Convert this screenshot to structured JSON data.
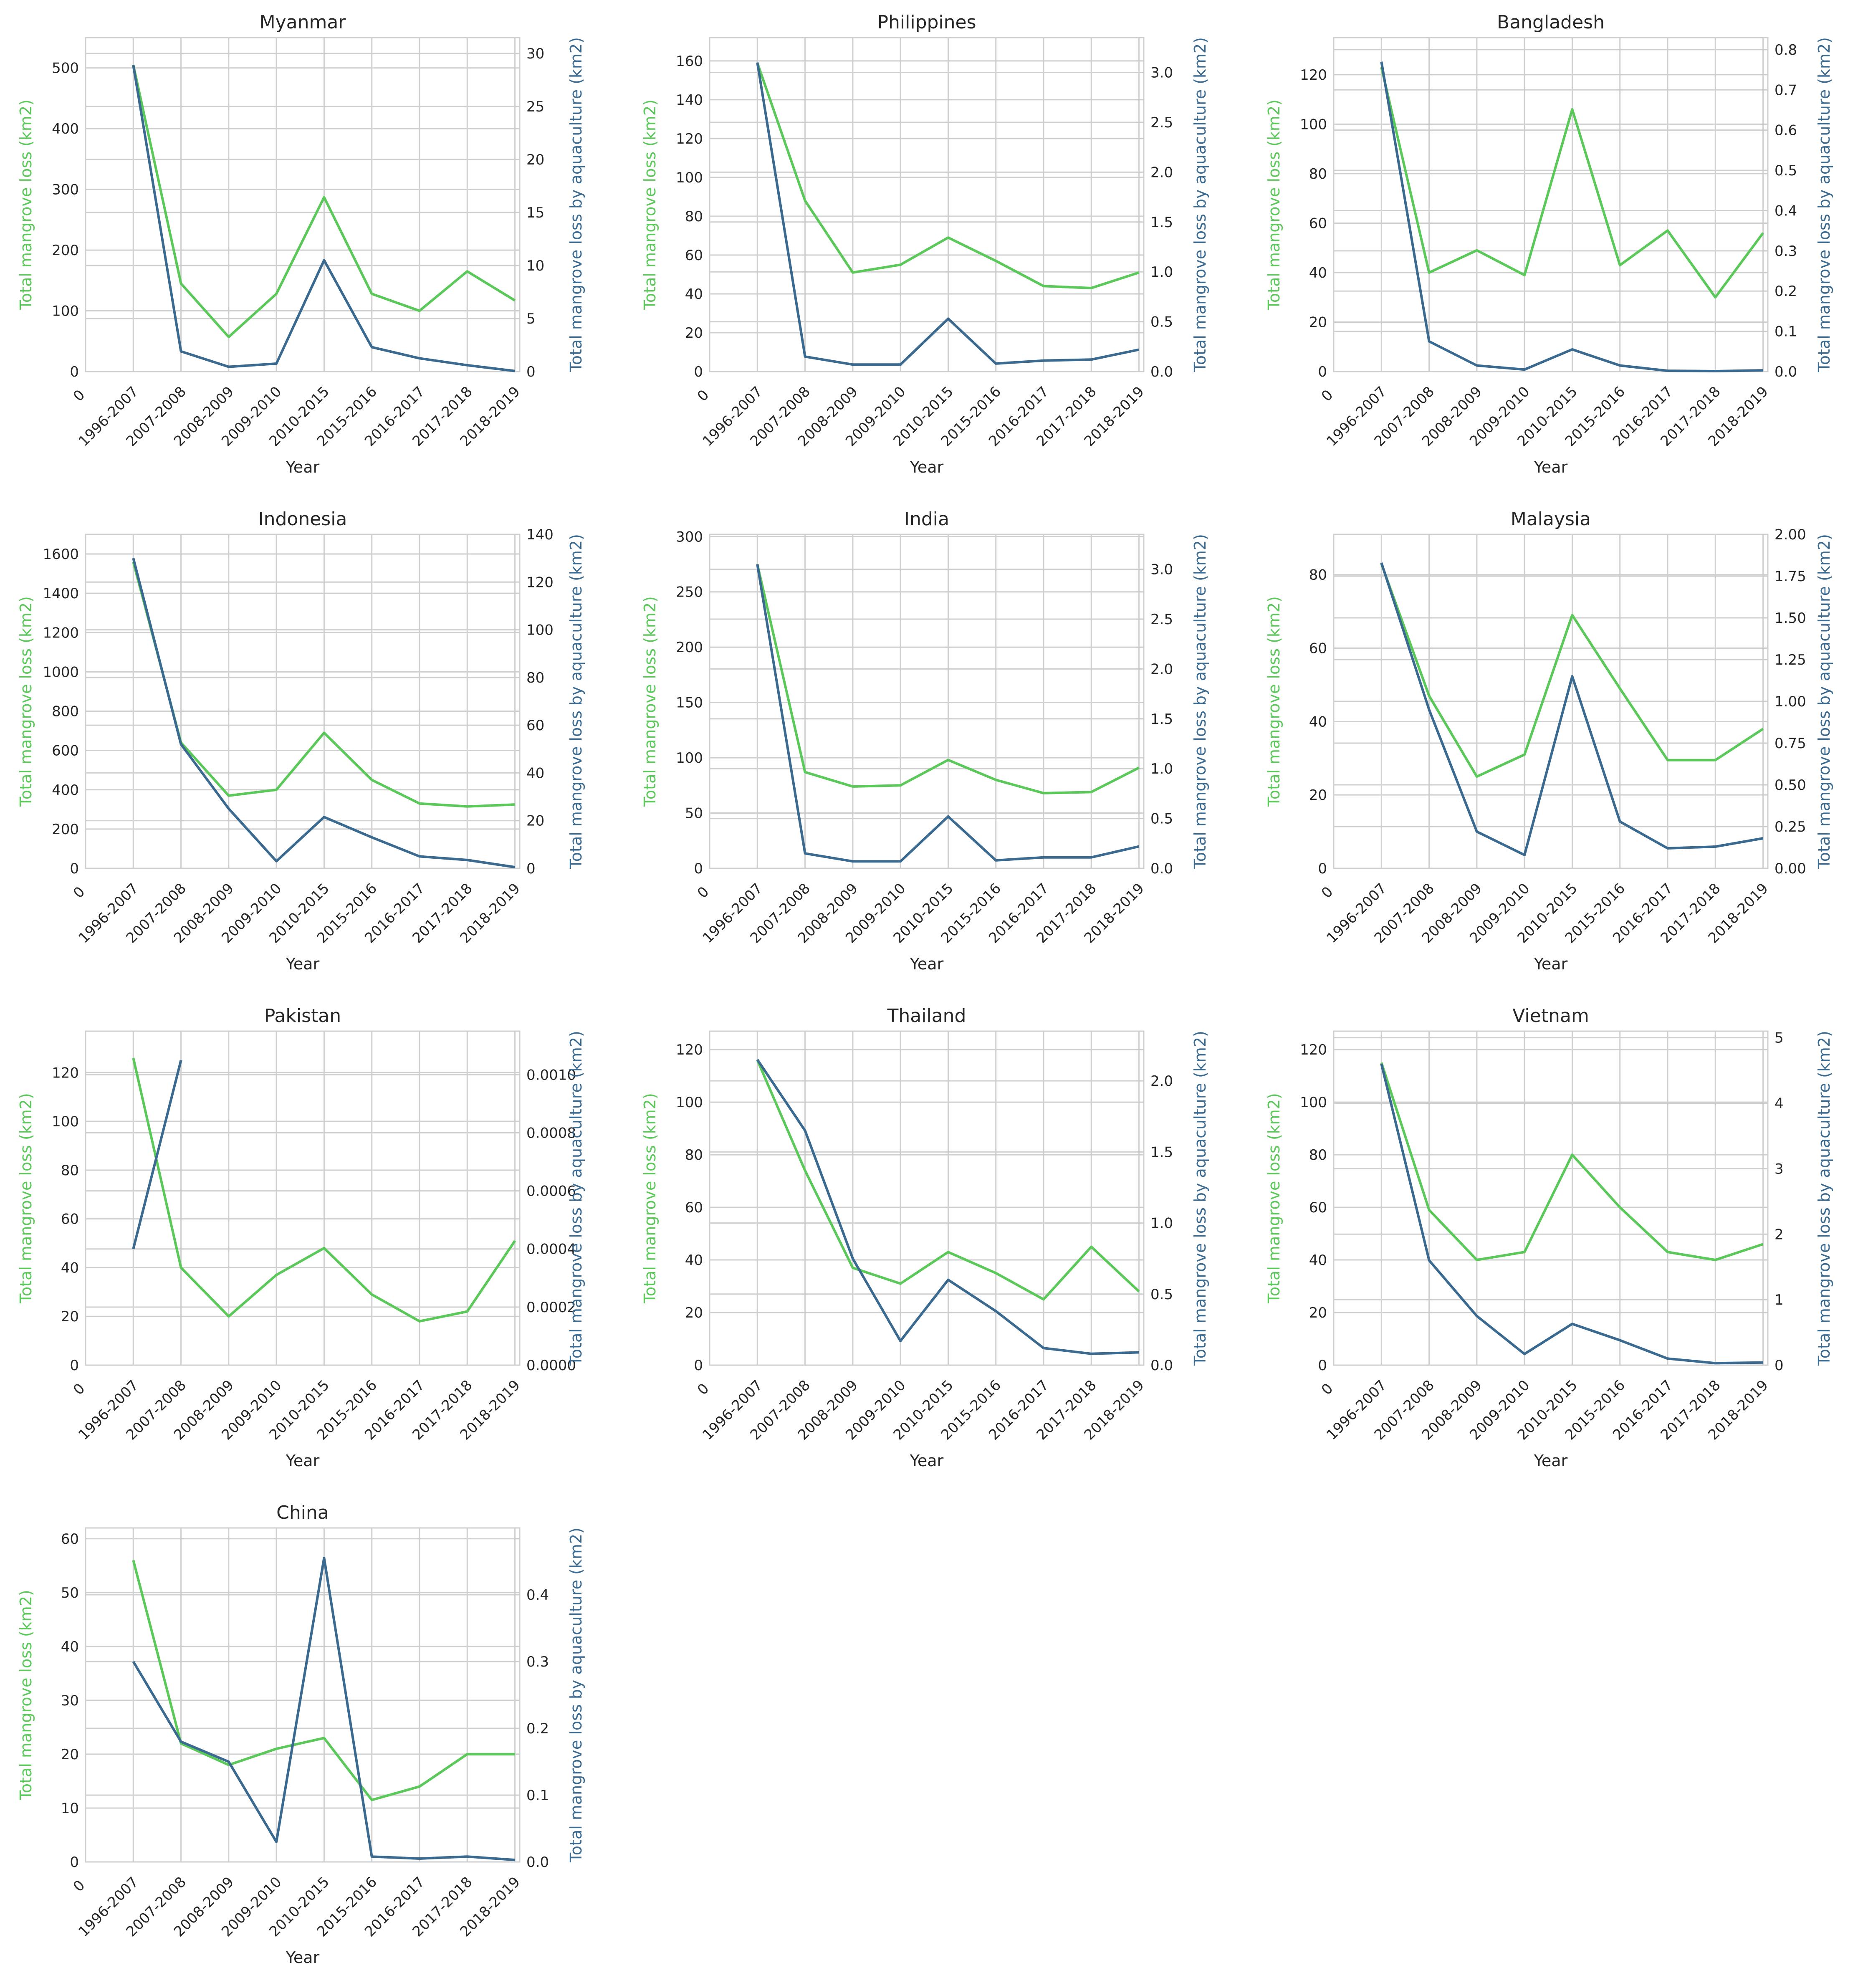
{
  "colors": {
    "total": "#5bc85a",
    "aquaculture": "#3b6a91",
    "grid": "#cfcfcf",
    "text": "#262626"
  },
  "labels": {
    "xlabel": "Year",
    "ylabel_left": "Total mangrove loss (km2)",
    "ylabel_right": "Total mangrove loss by aquaculture (km2)",
    "xtick_zero": "0"
  },
  "chart_data": [
    {
      "type": "line",
      "title": "Myanmar",
      "categories": [
        "1996-2007",
        "2007-2008",
        "2008-2009",
        "2009-2010",
        "2010-2015",
        "2015-2016",
        "2016-2017",
        "2017-2018",
        "2018-2019"
      ],
      "xlabel": "Year",
      "ylabel": "Total mangrove loss (km2)",
      "ylabel_right": "Total mangrove loss by aquaculture (km2)",
      "ylim": [
        0,
        550
      ],
      "yticks": [
        0,
        100,
        200,
        300,
        400,
        500
      ],
      "ylim_right": [
        0,
        31.5
      ],
      "yticks_right": [
        0,
        5,
        10,
        15,
        20,
        25,
        30
      ],
      "tick_decimals": 0,
      "tick_decimals_right": 0,
      "series": [
        {
          "axis": "left",
          "values": [
            505,
            145,
            57,
            128,
            287,
            128,
            100,
            165,
            117
          ]
        },
        {
          "axis": "right",
          "values": [
            28.9,
            1.9,
            0.45,
            0.75,
            10.5,
            2.3,
            1.25,
            0.6,
            0.05
          ]
        }
      ]
    },
    {
      "type": "line",
      "title": "Philippines",
      "categories": [
        "1996-2007",
        "2007-2008",
        "2008-2009",
        "2009-2010",
        "2010-2015",
        "2015-2016",
        "2016-2017",
        "2017-2018",
        "2018-2019"
      ],
      "xlabel": "Year",
      "ylabel": "Total mangrove loss (km2)",
      "ylabel_right": "Total mangrove loss by aquaculture (km2)",
      "ylim": [
        0,
        172
      ],
      "yticks": [
        0,
        20,
        40,
        60,
        80,
        100,
        120,
        140,
        160
      ],
      "ylim_right": [
        0,
        3.35
      ],
      "yticks_right": [
        0,
        0.5,
        1.0,
        1.5,
        2.0,
        2.5,
        3.0
      ],
      "tick_decimals": 0,
      "tick_decimals_right": 1,
      "series": [
        {
          "axis": "left",
          "values": [
            159,
            88,
            51,
            55,
            69,
            57,
            44,
            43,
            51
          ]
        },
        {
          "axis": "right",
          "values": [
            3.1,
            0.15,
            0.07,
            0.07,
            0.53,
            0.08,
            0.11,
            0.12,
            0.22
          ]
        }
      ]
    },
    {
      "type": "line",
      "title": "Bangladesh",
      "categories": [
        "1996-2007",
        "2007-2008",
        "2008-2009",
        "2009-2010",
        "2010-2015",
        "2015-2016",
        "2016-2017",
        "2017-2018",
        "2018-2019"
      ],
      "xlabel": "Year",
      "ylabel": "Total mangrove loss (km2)",
      "ylabel_right": "Total mangrove loss by aquaculture (km2)",
      "ylim": [
        0,
        135
      ],
      "yticks": [
        0,
        20,
        40,
        60,
        80,
        100,
        120
      ],
      "ylim_right": [
        0,
        0.83
      ],
      "yticks_right": [
        0,
        0.1,
        0.2,
        0.3,
        0.4,
        0.5,
        0.6,
        0.7,
        0.8
      ],
      "tick_decimals": 0,
      "tick_decimals_right": 1,
      "series": [
        {
          "axis": "left",
          "values": [
            123,
            40,
            49,
            39,
            106,
            43,
            57,
            30,
            56
          ]
        },
        {
          "axis": "right",
          "values": [
            0.77,
            0.075,
            0.015,
            0.005,
            0.055,
            0.015,
            0.002,
            0.001,
            0.003
          ]
        }
      ]
    },
    {
      "type": "line",
      "title": "Indonesia",
      "categories": [
        "1996-2007",
        "2007-2008",
        "2008-2009",
        "2009-2010",
        "2010-2015",
        "2015-2016",
        "2016-2017",
        "2017-2018",
        "2018-2019"
      ],
      "xlabel": "Year",
      "ylabel": "Total mangrove loss (km2)",
      "ylabel_right": "Total mangrove loss by aquaculture (km2)",
      "ylim": [
        0,
        1700
      ],
      "yticks": [
        0,
        200,
        400,
        600,
        800,
        1000,
        1200,
        1400,
        1600
      ],
      "ylim_right": [
        0,
        140
      ],
      "yticks_right": [
        0,
        20,
        40,
        60,
        80,
        100,
        120,
        140
      ],
      "tick_decimals": 0,
      "tick_decimals_right": 0,
      "series": [
        {
          "axis": "left",
          "values": [
            1560,
            640,
            370,
            400,
            690,
            450,
            330,
            315,
            325
          ]
        },
        {
          "axis": "right",
          "values": [
            130,
            52,
            25,
            3,
            21.5,
            13,
            5,
            3.5,
            0.5
          ]
        }
      ]
    },
    {
      "type": "line",
      "title": "India",
      "categories": [
        "1996-2007",
        "2007-2008",
        "2008-2009",
        "2009-2010",
        "2010-2015",
        "2015-2016",
        "2016-2017",
        "2017-2018",
        "2018-2019"
      ],
      "xlabel": "Year",
      "ylabel": "Total mangrove loss (km2)",
      "ylabel_right": "Total mangrove loss by aquaculture (km2)",
      "ylim": [
        0,
        302
      ],
      "yticks": [
        0,
        50,
        100,
        150,
        200,
        250,
        300
      ],
      "ylim_right": [
        0,
        3.35
      ],
      "yticks_right": [
        0,
        0.5,
        1.0,
        1.5,
        2.0,
        2.5,
        3.0
      ],
      "tick_decimals": 0,
      "tick_decimals_right": 1,
      "series": [
        {
          "axis": "left",
          "values": [
            275,
            87,
            74,
            75,
            98,
            80,
            68,
            69,
            91
          ]
        },
        {
          "axis": "right",
          "values": [
            3.05,
            0.15,
            0.07,
            0.07,
            0.52,
            0.08,
            0.11,
            0.11,
            0.22
          ]
        }
      ]
    },
    {
      "type": "line",
      "title": "Malaysia",
      "categories": [
        "1996-2007",
        "2007-2008",
        "2008-2009",
        "2009-2010",
        "2010-2015",
        "2015-2016",
        "2016-2017",
        "2017-2018",
        "2018-2019"
      ],
      "xlabel": "Year",
      "ylabel": "Total mangrove loss (km2)",
      "ylabel_right": "Total mangrove loss by aquaculture (km2)",
      "ylim": [
        0,
        91
      ],
      "yticks": [
        0,
        20,
        40,
        60,
        80
      ],
      "ylim_right": [
        0,
        2.0
      ],
      "yticks_right": [
        0,
        0.25,
        0.5,
        0.75,
        1.0,
        1.25,
        1.5,
        1.75,
        2.0
      ],
      "tick_decimals": 0,
      "tick_decimals_right": 2,
      "series": [
        {
          "axis": "left",
          "values": [
            83,
            47,
            25,
            31,
            69,
            49,
            29.5,
            29.5,
            38
          ]
        },
        {
          "axis": "right",
          "values": [
            1.83,
            0.95,
            0.22,
            0.08,
            1.15,
            0.28,
            0.12,
            0.13,
            0.18
          ]
        }
      ]
    },
    {
      "type": "line",
      "title": "Pakistan",
      "categories": [
        "1996-2007",
        "2007-2008",
        "2008-2009",
        "2009-2010",
        "2010-2015",
        "2015-2016",
        "2016-2017",
        "2017-2018",
        "2018-2019"
      ],
      "xlabel": "Year",
      "ylabel": "Total mangrove loss (km2)",
      "ylabel_right": "Total mangrove loss by aquaculture (km2)",
      "ylim": [
        0,
        137
      ],
      "yticks": [
        0,
        20,
        40,
        60,
        80,
        100,
        120
      ],
      "ylim_right": [
        0,
        0.00115
      ],
      "yticks_right": [
        0,
        0.0002,
        0.0004,
        0.0006,
        0.0008,
        0.001
      ],
      "tick_decimals": 0,
      "tick_decimals_right": 4,
      "series": [
        {
          "axis": "left",
          "values": [
            126,
            40,
            20,
            37,
            48,
            29,
            18,
            22,
            51
          ]
        },
        {
          "axis": "right",
          "values": [
            0.0004,
            0.00105,
            null,
            null,
            null,
            null,
            null,
            null,
            null
          ]
        }
      ]
    },
    {
      "type": "line",
      "title": "Thailand",
      "categories": [
        "1996-2007",
        "2007-2008",
        "2008-2009",
        "2009-2010",
        "2010-2015",
        "2015-2016",
        "2016-2017",
        "2017-2018",
        "2018-2019"
      ],
      "xlabel": "Year",
      "ylabel": "Total mangrove loss (km2)",
      "ylabel_right": "Total mangrove loss by aquaculture (km2)",
      "ylim": [
        0,
        127
      ],
      "yticks": [
        0,
        20,
        40,
        60,
        80,
        100,
        120
      ],
      "ylim_right": [
        0,
        2.35
      ],
      "yticks_right": [
        0,
        0.5,
        1.0,
        1.5,
        2.0
      ],
      "tick_decimals": 0,
      "tick_decimals_right": 1,
      "series": [
        {
          "axis": "left",
          "values": [
            116,
            74,
            37,
            31,
            43,
            35,
            25,
            45,
            28
          ]
        },
        {
          "axis": "right",
          "values": [
            2.15,
            1.65,
            0.75,
            0.17,
            0.6,
            0.38,
            0.12,
            0.08,
            0.09
          ]
        }
      ]
    },
    {
      "type": "line",
      "title": "Vietnam",
      "categories": [
        "1996-2007",
        "2007-2008",
        "2008-2009",
        "2009-2010",
        "2010-2015",
        "2015-2016",
        "2016-2017",
        "2017-2018",
        "2018-2019"
      ],
      "xlabel": "Year",
      "ylabel": "Total mangrove loss (km2)",
      "ylabel_right": "Total mangrove loss by aquaculture (km2)",
      "ylim": [
        0,
        127
      ],
      "yticks": [
        0,
        20,
        40,
        60,
        80,
        100,
        120
      ],
      "ylim_right": [
        0,
        5.1
      ],
      "yticks_right": [
        0,
        1,
        2,
        3,
        4,
        5
      ],
      "tick_decimals": 0,
      "tick_decimals_right": 0,
      "series": [
        {
          "axis": "left",
          "values": [
            115,
            59,
            40,
            43,
            80,
            60,
            43,
            40,
            46
          ]
        },
        {
          "axis": "right",
          "values": [
            4.6,
            1.6,
            0.75,
            0.17,
            0.63,
            0.38,
            0.1,
            0.03,
            0.04
          ]
        }
      ]
    },
    {
      "type": "line",
      "title": "China",
      "categories": [
        "1996-2007",
        "2007-2008",
        "2008-2009",
        "2009-2010",
        "2010-2015",
        "2015-2016",
        "2016-2017",
        "2017-2018",
        "2018-2019"
      ],
      "xlabel": "Year",
      "ylabel": "Total mangrove loss (km2)",
      "ylabel_right": "Total mangrove loss by aquaculture (km2)",
      "ylim": [
        0,
        62
      ],
      "yticks": [
        0,
        10,
        20,
        30,
        40,
        50,
        60
      ],
      "ylim_right": [
        0,
        0.5
      ],
      "yticks_right": [
        0,
        0.1,
        0.2,
        0.3,
        0.4
      ],
      "tick_decimals": 0,
      "tick_decimals_right": 1,
      "series": [
        {
          "axis": "left",
          "values": [
            56,
            22,
            18,
            21,
            23,
            11.5,
            14,
            20,
            20
          ]
        },
        {
          "axis": "right",
          "values": [
            0.3,
            0.18,
            0.15,
            0.03,
            0.455,
            0.008,
            0.005,
            0.008,
            0.003
          ]
        }
      ]
    }
  ]
}
